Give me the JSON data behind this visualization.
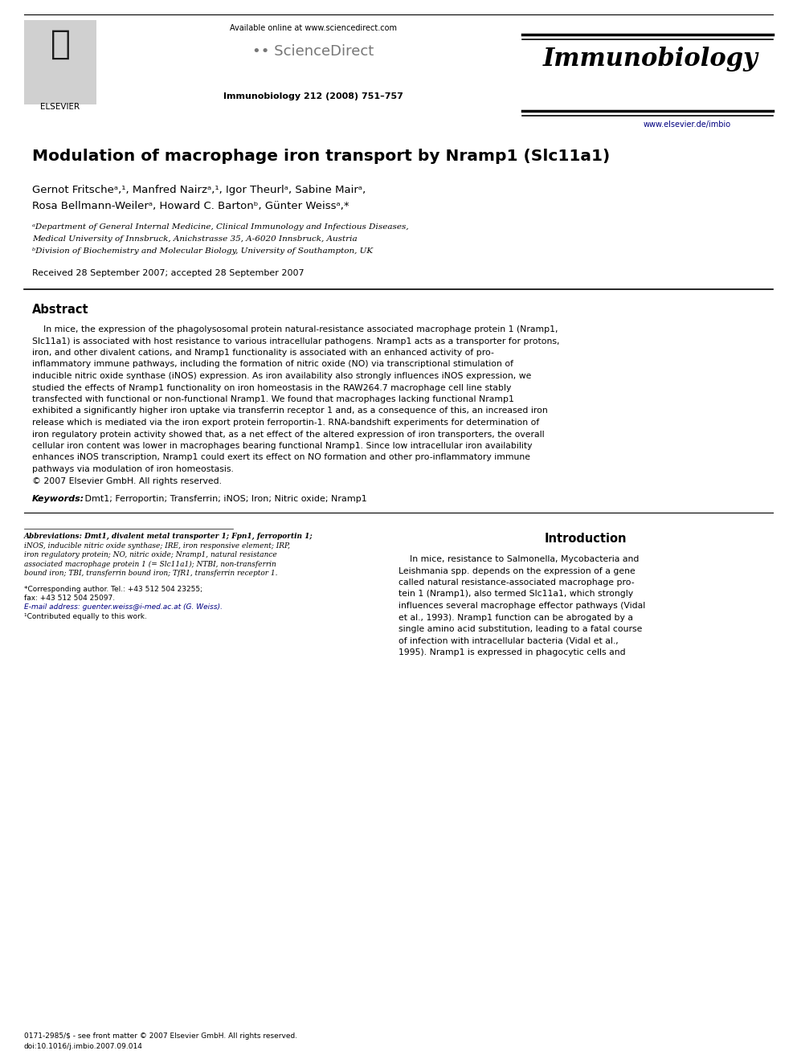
{
  "title": "Modulation of macrophage iron transport by Nramp1 (Slc11a1)",
  "authors_line1": "Gernot Fritscheᵃ,¹, Manfred Nairzᵃ,¹, Igor Theurlᵃ, Sabine Mairᵃ,",
  "authors_line2": "Rosa Bellmann-Weilerᵃ, Howard C. Bartonᵇ, Günter Weissᵃ,*",
  "affil_a": "ᵃDepartment of General Internal Medicine, Clinical Immunology and Infectious Diseases,",
  "affil_a2": "Medical University of Innsbruck, Anichstrasse 35, A-6020 Innsbruck, Austria",
  "affil_b": "ᵇDivision of Biochemistry and Molecular Biology, University of Southampton, UK",
  "received": "Received 28 September 2007; accepted 28 September 2007",
  "journal_header": "Immunobiology 212 (2008) 751–757",
  "available_online": "Available online at www.sciencedirect.com",
  "journal_name": "Immunobiology",
  "website": "www.elsevier.de/imbio",
  "elsevier_text": "ELSEVIER",
  "abstract_title": "Abstract",
  "keywords_bold": "Keywords:",
  "keywords_rest": " Dmt1; Ferroportin; Transferrin; iNOS; Iron; Nitric oxide; Nramp1",
  "intro_title": "Introduction",
  "footnote_abbrev_bold": "Abbreviations:",
  "footnote_abbrev_rest": " Dmt1, divalent metal transporter 1; Fpn1, ferroportin 1; iNOS, inducible nitric oxide synthase; IRE, iron responsive element; IRP, iron regulatory protein; NO, nitric oxide; Nramp1, natural resistance associated macrophage protein 1 (= Slc11a1); NTBI, non-transferrin bound iron; TBI, transferrin bound iron; TfR1, transferrin receptor 1.",
  "footnote_corresponding": "*Corresponding author. Tel.: +43 512 504 23255;",
  "footnote_fax": "fax: +43 512 504 25097.",
  "footnote_email": "E-mail address: guenter.weiss@i-med.ac.at (G. Weiss).",
  "footnote_contrib": "¹Contributed equally to this work.",
  "copyright_line1": "0171-2985/$ - see front matter © 2007 Elsevier GmbH. All rights reserved.",
  "copyright_line2": "doi:10.1016/j.imbio.2007.09.014",
  "bg_color": "#ffffff",
  "text_color": "#000000",
  "link_color": "#000080",
  "abstract_lines": [
    "    In mice, the expression of the phagolysosomal protein natural-resistance associated macrophage protein 1 (Nramp1,",
    "Slc11a1) is associated with host resistance to various intracellular pathogens. Nramp1 acts as a transporter for protons,",
    "iron, and other divalent cations, and Nramp1 functionality is associated with an enhanced activity of pro-",
    "inflammatory immune pathways, including the formation of nitric oxide (NO) via transcriptional stimulation of",
    "inducible nitric oxide synthase (iNOS) expression. As iron availability also strongly influences iNOS expression, we",
    "studied the effects of Nramp1 functionality on iron homeostasis in the RAW264.7 macrophage cell line stably",
    "transfected with functional or non-functional Nramp1. We found that macrophages lacking functional Nramp1",
    "exhibited a significantly higher iron uptake via transferrin receptor 1 and, as a consequence of this, an increased iron",
    "release which is mediated via the iron export protein ferroportin-1. RNA-bandshift experiments for determination of",
    "iron regulatory protein activity showed that, as a net effect of the altered expression of iron transporters, the overall",
    "cellular iron content was lower in macrophages bearing functional Nramp1. Since low intracellular iron availability",
    "enhances iNOS transcription, Nramp1 could exert its effect on NO formation and other pro-inflammatory immune",
    "pathways via modulation of iron homeostasis.",
    "© 2007 Elsevier GmbH. All rights reserved."
  ],
  "abbrev_lines": [
    "Abbreviations: Dmt1, divalent metal transporter 1; Fpn1, ferroportin 1;",
    "iNOS, inducible nitric oxide synthase; IRE, iron responsive element; IRP,",
    "iron regulatory protein; NO, nitric oxide; Nramp1, natural resistance",
    "associated macrophage protein 1 (= Slc11a1); NTBI, non-transferrin",
    "bound iron; TBI, transferrin bound iron; TfR1, transferrin receptor 1."
  ],
  "intro_lines": [
    "    In mice, resistance to Salmonella, Mycobacteria and",
    "Leishmania spp. depends on the expression of a gene",
    "called natural resistance-associated macrophage pro-",
    "tein 1 (Nramp1), also termed Slc11a1, which strongly",
    "influences several macrophage effector pathways (Vidal",
    "et al., 1993). Nramp1 function can be abrogated by a",
    "single amino acid substitution, leading to a fatal course",
    "of infection with intracellular bacteria (Vidal et al.,",
    "1995). Nramp1 is expressed in phagocytic cells and"
  ]
}
